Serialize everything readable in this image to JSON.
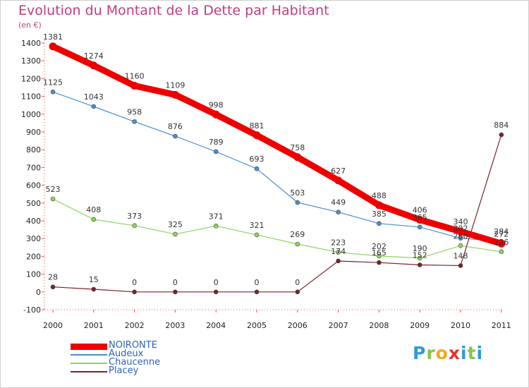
{
  "title": "Evolution du Montant de la Dette par Habitant",
  "unit_label": "(en €)",
  "logo": {
    "text": "Proxiti",
    "letters": [
      {
        "ch": "P",
        "color": "#2f9bd6"
      },
      {
        "ch": "r",
        "color": "#8bc34a"
      },
      {
        "ch": "o",
        "color": "#f2a81d"
      },
      {
        "ch": "x",
        "color": "#e3342f"
      },
      {
        "ch": "i",
        "color": "#2f9bd6"
      },
      {
        "ch": "t",
        "color": "#8bc34a"
      },
      {
        "ch": "i",
        "color": "#2f9bd6"
      }
    ]
  },
  "chart_data": {
    "type": "line",
    "title": "Evolution du Montant de la Dette par Habitant",
    "ylabel": "(en €)",
    "xlabel": "",
    "x": [
      "2000",
      "2001",
      "2002",
      "2003",
      "2004",
      "2005",
      "2006",
      "2007",
      "2008",
      "2009",
      "2010",
      "2011"
    ],
    "ylim": [
      -100,
      1400
    ],
    "yticks": [
      "-100",
      "0",
      "100",
      "200",
      "300",
      "400",
      "500",
      "600",
      "700",
      "800",
      "900",
      "1000",
      "1100",
      "1200",
      "1300",
      "1400"
    ],
    "grid": false,
    "legend_position": "bottom-left",
    "series": [
      {
        "name": "NOIRONTE",
        "color": "#ee0000",
        "width": "thick",
        "values": [
          1381,
          1274,
          1160,
          1109,
          998,
          881,
          758,
          627,
          488,
          406,
          340,
          272
        ],
        "labels": [
          "1381",
          "1274",
          "1160",
          "1109",
          "998",
          "881",
          "758",
          "627",
          "488",
          "406",
          "340",
          "272"
        ]
      },
      {
        "name": "Audeux",
        "color": "#4b8fce",
        "width": "thin",
        "values": [
          1125,
          1043,
          958,
          876,
          789,
          693,
          503,
          449,
          385,
          365,
          302,
          284
        ],
        "labels": [
          "1125",
          "1043",
          "958",
          "876",
          "789",
          "693",
          "503",
          "449",
          "385",
          "365",
          "302",
          "284"
        ]
      },
      {
        "name": "Chaucenne",
        "color": "#8fd45f",
        "width": "thin",
        "values": [
          523,
          408,
          373,
          325,
          371,
          321,
          269,
          223,
          202,
          190,
          260,
          226
        ],
        "labels": [
          "523",
          "408",
          "373",
          "325",
          "371",
          "321",
          "269",
          "223",
          "202",
          "190",
          "260",
          "226"
        ]
      },
      {
        "name": "Placey",
        "color": "#7a2228",
        "width": "thin",
        "values": [
          28,
          15,
          0,
          0,
          0,
          0,
          0,
          174,
          165,
          152,
          148,
          884
        ],
        "labels": [
          "28",
          "15",
          "0",
          "0",
          "0",
          "0",
          "0",
          "174",
          "165",
          "152",
          "148",
          "884"
        ]
      }
    ]
  }
}
